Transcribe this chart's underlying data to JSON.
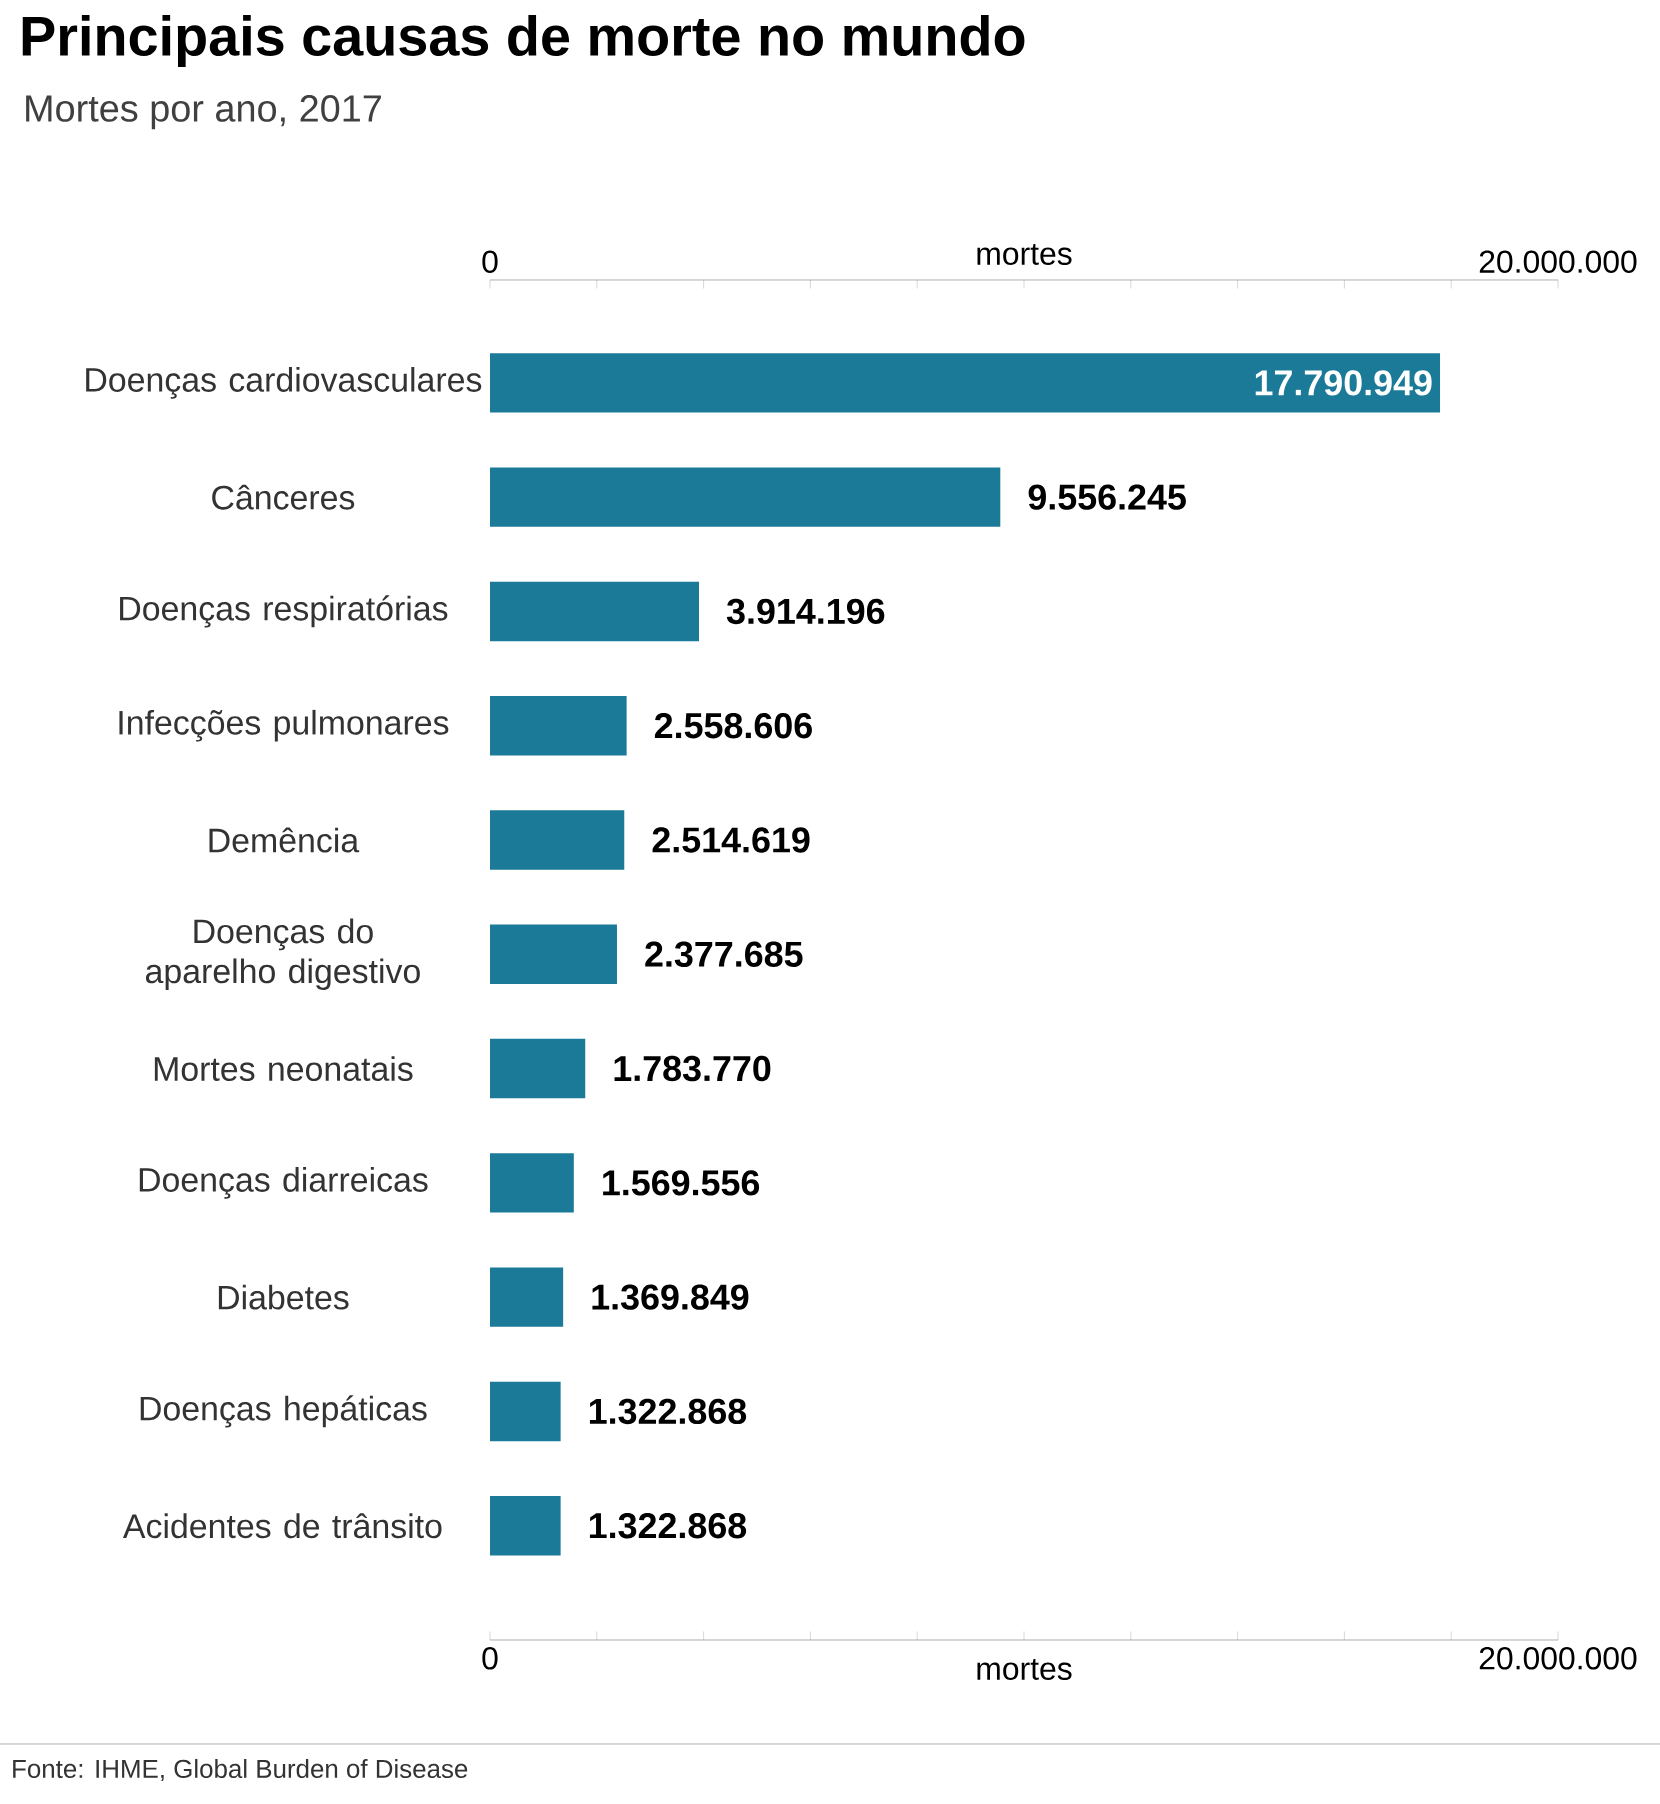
{
  "chart_data": {
    "type": "bar",
    "orientation": "horizontal",
    "title": "Principais causas de morte no mundo",
    "subtitle": "Mortes por ano, 2017",
    "xlabel": "mortes",
    "x2label": "mortes",
    "categories": [
      "Doenças cardiovasculares",
      "Cânceres",
      "Doenças respiratórias",
      "Infecções pulmonares",
      "Demência",
      "Doenças do aparelho digestivo",
      "Mortes neonatais",
      "Doenças diarreicas",
      "Diabetes",
      "Doenças hepáticas",
      "Acidentes de trânsito"
    ],
    "values": [
      17790949,
      9556245,
      3914196,
      2558606,
      2514619,
      2377685,
      1783770,
      1569556,
      1369849,
      1322868,
      1322868
    ],
    "value_labels": [
      "17.790.949",
      "9.556.245",
      "3.914.196",
      "2.558.606",
      "2.514.619",
      "2.377.685",
      "1.783.770",
      "1.569.556",
      "1.369.849",
      "1.322.868",
      "1.322.868"
    ],
    "color": "#1b7a97",
    "xlim": [
      0,
      20000000
    ],
    "xticks": [
      {
        "value": 0,
        "label": "0"
      },
      {
        "value": 2000000,
        "label": null
      },
      {
        "value": 4000000,
        "label": null
      },
      {
        "value": 6000000,
        "label": null
      },
      {
        "value": 8000000,
        "label": null
      },
      {
        "value": 10000000,
        "label": null
      },
      {
        "value": 12000000,
        "label": null
      },
      {
        "value": 14000000,
        "label": null
      },
      {
        "value": 16000000,
        "label": null
      },
      {
        "value": 18000000,
        "label": null
      },
      {
        "value": 20000000,
        "label": "20.000.000"
      }
    ],
    "x2lim": [
      0,
      20000000
    ],
    "x2ticks": [
      {
        "value": 0,
        "label": "0"
      },
      {
        "value": 2000000,
        "label": null
      },
      {
        "value": 4000000,
        "label": null
      },
      {
        "value": 6000000,
        "label": null
      },
      {
        "value": 8000000,
        "label": null
      },
      {
        "value": 10000000,
        "label": null
      },
      {
        "value": 12000000,
        "label": null
      },
      {
        "value": 14000000,
        "label": null
      },
      {
        "value": 16000000,
        "label": null
      },
      {
        "value": 18000000,
        "label": null
      },
      {
        "value": 20000000,
        "label": "20.000.000"
      }
    ],
    "grid": false,
    "annotations": [
      "Fonte: IHME, Global Burden of Disease"
    ]
  }
}
